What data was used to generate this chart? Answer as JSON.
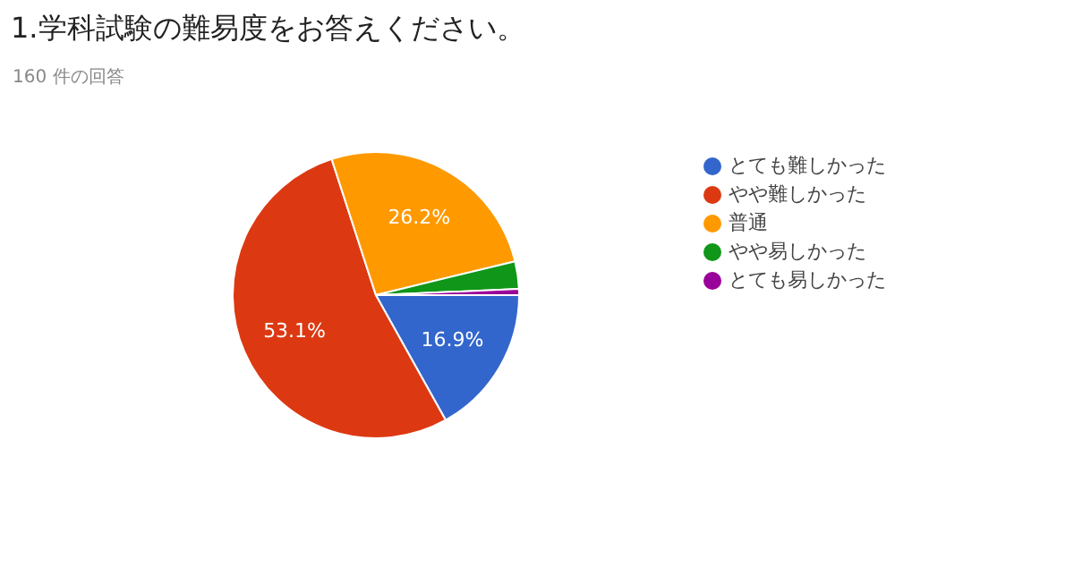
{
  "chart_data": {
    "type": "pie",
    "title": "1.学科試験の難易度をお答えください。",
    "subtitle": "160 件の回答",
    "categories": [
      "とても難しかった",
      "やや難しかった",
      "普通",
      "やや易しかった",
      "とても易しかった"
    ],
    "values": [
      16.9,
      53.1,
      26.2,
      3.1,
      0.7
    ],
    "colors": [
      "#3366cc",
      "#dc3912",
      "#ff9900",
      "#109618",
      "#990099"
    ],
    "value_labels": [
      "16.9%",
      "53.1%",
      "26.2%",
      null,
      null
    ],
    "legend": "right"
  }
}
